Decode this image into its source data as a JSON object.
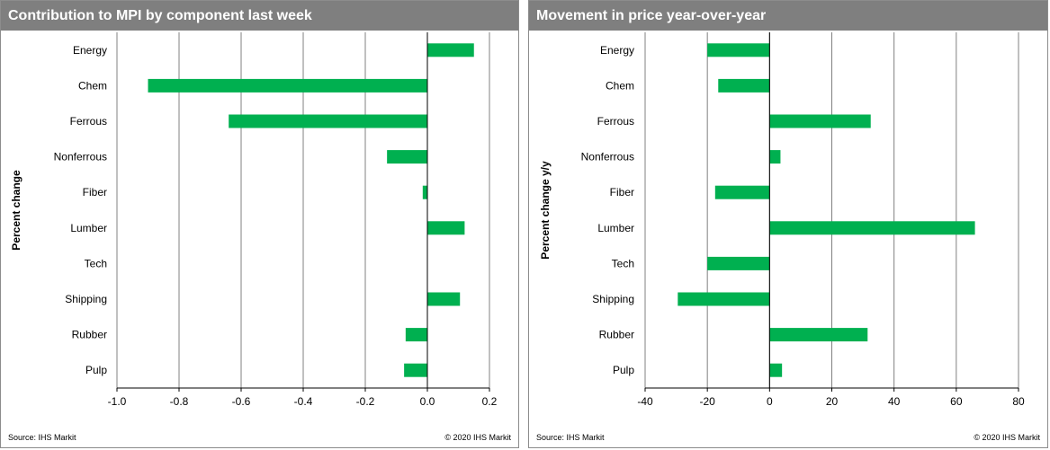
{
  "colors": {
    "bar": "#00b050",
    "header_bg": "#7f7f7f",
    "grid": "#808080"
  },
  "chart_data": [
    {
      "type": "bar",
      "orientation": "horizontal",
      "title": "Contribution to MPI by component last week",
      "xlabel": "",
      "ylabel": "Percent change",
      "categories": [
        "Energy",
        "Chem",
        "Ferrous",
        "Nonferrous",
        "Fiber",
        "Lumber",
        "Tech",
        "Shipping",
        "Rubber",
        "Pulp"
      ],
      "values": [
        0.15,
        -0.9,
        -0.64,
        -0.13,
        -0.015,
        0.12,
        0.0,
        0.105,
        -0.07,
        -0.075
      ],
      "xlim": [
        -1.0,
        0.2
      ],
      "xticks": [
        "-1.0",
        "-0.8",
        "-0.6",
        "-0.4",
        "-0.2",
        "0.0",
        "0.2"
      ],
      "xtick_values": [
        -1.0,
        -0.8,
        -0.6,
        -0.4,
        -0.2,
        0.0,
        0.2
      ],
      "grid": "vertical",
      "source": "Source:  IHS Markit",
      "copyright": "© 2020  IHS Markit"
    },
    {
      "type": "bar",
      "orientation": "horizontal",
      "title": "Movement in price year-over-year",
      "xlabel": "",
      "ylabel": "Percent change y/y",
      "categories": [
        "Energy",
        "Chem",
        "Ferrous",
        "Nonferrous",
        "Fiber",
        "Lumber",
        "Tech",
        "Shipping",
        "Rubber",
        "Pulp"
      ],
      "values": [
        -20,
        -16.5,
        32.5,
        3.5,
        -17.5,
        66,
        -20,
        -29.5,
        31.5,
        4
      ],
      "xlim": [
        -40,
        80
      ],
      "xticks": [
        "-40",
        "-20",
        "0",
        "20",
        "40",
        "60",
        "80"
      ],
      "xtick_values": [
        -40,
        -20,
        0,
        20,
        40,
        60,
        80
      ],
      "grid": "vertical",
      "source": "Source:  IHS Markit",
      "copyright": "© 2020  IHS Markit"
    }
  ]
}
